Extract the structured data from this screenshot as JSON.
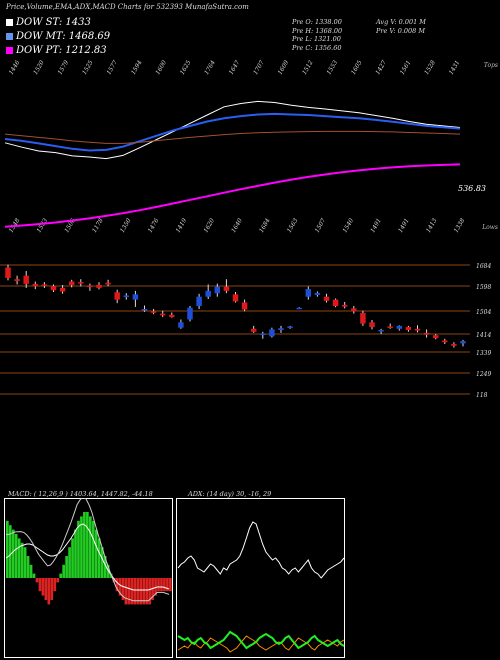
{
  "header": {
    "title": "Price,Volume,EMA,ADX,MACD Charts for 532393 MunafaSutra.com"
  },
  "legend": [
    {
      "label": "DOW ST: 1433",
      "color": "#ffffff"
    },
    {
      "label": "DOW MT: 1468.69",
      "color": "#6495ed"
    },
    {
      "label": "DOW PT: 1212.83",
      "color": "#ff00ff"
    }
  ],
  "info_block": {
    "col1": [
      "Pre O: 1338.00",
      "Pre H: 1368.00",
      "Pre L: 1321.00",
      "Pre C: 1356.60"
    ],
    "col2": [
      "Avg V: 0.001 M",
      "Pre V: 0.008 M"
    ]
  },
  "colors": {
    "up": "#1e4fd8",
    "down": "#e01818",
    "ema_white": "#ffffff",
    "ema_blue": "#2a5ef0",
    "ema_orange": "#a0522d",
    "ema_magenta": "#ff00ff",
    "axis_line": "#8b4513",
    "macd_bg": "#0a4a0a",
    "adx_green": "#22ee22",
    "adx_orange": "#ff8c00"
  },
  "chart_data": [
    {
      "type": "line",
      "name": "ema_panel",
      "top_labels": [
        "1446",
        "1520",
        "1579",
        "1525",
        "1577",
        "1594",
        "1600",
        "1625",
        "1764",
        "1647",
        "1707",
        "1609",
        "1512",
        "1553",
        "1605",
        "1427",
        "1561",
        "1528",
        "1431"
      ],
      "bottom_labels": [
        "1548",
        "1533",
        "1506",
        "1178",
        "1350",
        "1476",
        "1419",
        "1620",
        "1640",
        "1684",
        "1563",
        "1507",
        "1540",
        "1491",
        "1491",
        "1413",
        "1338"
      ],
      "right_top_label": "Tops",
      "right_bottom_label": "Lows",
      "last_value": "536.83",
      "series": [
        {
          "values": [
            1488,
            1472,
            1458,
            1452,
            1440,
            1436,
            1430,
            1442,
            1470,
            1500,
            1530,
            1560,
            1590,
            1620,
            1632,
            1640,
            1636,
            1626,
            1618,
            1612,
            1605,
            1598,
            1588,
            1578,
            1566,
            1556,
            1550,
            1544
          ]
        },
        {
          "values": [
            1502,
            1495,
            1486,
            1476,
            1466,
            1460,
            1462,
            1474,
            1494,
            1514,
            1534,
            1550,
            1566,
            1578,
            1586,
            1592,
            1594,
            1592,
            1590,
            1586,
            1582,
            1578,
            1572,
            1565,
            1558,
            1550,
            1545,
            1540
          ]
        },
        {
          "values": [
            1520,
            1514,
            1508,
            1502,
            1495,
            1490,
            1486,
            1486,
            1490,
            1496,
            1502,
            1508,
            1513,
            1518,
            1522,
            1525,
            1527,
            1528,
            1529,
            1530,
            1530,
            1530,
            1529,
            1528,
            1526,
            1524,
            1522,
            1520
          ]
        },
        {
          "values": [
            1180,
            1185,
            1190,
            1196,
            1203,
            1211,
            1220,
            1230,
            1241,
            1253,
            1266,
            1279,
            1292,
            1305,
            1318,
            1330,
            1342,
            1353,
            1363,
            1372,
            1380,
            1387,
            1393,
            1398,
            1402,
            1405,
            1407,
            1409
          ]
        }
      ]
    },
    {
      "type": "bar",
      "name": "candles",
      "yticks": [
        "1684",
        "1598",
        "1504",
        "1414",
        "1339",
        "1249",
        "118"
      ],
      "ohlc": [
        {
          "o": 1640,
          "h": 1650,
          "l": 1596,
          "c": 1604
        },
        {
          "o": 1600,
          "h": 1612,
          "l": 1582,
          "c": 1594
        },
        {
          "o": 1612,
          "h": 1628,
          "l": 1570,
          "c": 1584
        },
        {
          "o": 1584,
          "h": 1592,
          "l": 1566,
          "c": 1576
        },
        {
          "o": 1582,
          "h": 1590,
          "l": 1570,
          "c": 1578
        },
        {
          "o": 1576,
          "h": 1582,
          "l": 1556,
          "c": 1562
        },
        {
          "o": 1570,
          "h": 1580,
          "l": 1550,
          "c": 1558
        },
        {
          "o": 1592,
          "h": 1598,
          "l": 1572,
          "c": 1580
        },
        {
          "o": 1590,
          "h": 1600,
          "l": 1575,
          "c": 1585
        },
        {
          "o": 1578,
          "h": 1585,
          "l": 1560,
          "c": 1575
        },
        {
          "o": 1580,
          "h": 1590,
          "l": 1565,
          "c": 1570
        },
        {
          "o": 1588,
          "h": 1598,
          "l": 1576,
          "c": 1582
        },
        {
          "o": 1555,
          "h": 1564,
          "l": 1518,
          "c": 1530
        },
        {
          "o": 1540,
          "h": 1552,
          "l": 1530,
          "c": 1544
        },
        {
          "o": 1530,
          "h": 1560,
          "l": 1505,
          "c": 1548
        },
        {
          "o": 1495,
          "h": 1510,
          "l": 1488,
          "c": 1498
        },
        {
          "o": 1490,
          "h": 1498,
          "l": 1480,
          "c": 1485
        },
        {
          "o": 1482,
          "h": 1492,
          "l": 1470,
          "c": 1476
        },
        {
          "o": 1478,
          "h": 1486,
          "l": 1468,
          "c": 1470
        },
        {
          "o": 1434,
          "h": 1462,
          "l": 1430,
          "c": 1452
        },
        {
          "o": 1462,
          "h": 1508,
          "l": 1455,
          "c": 1502
        },
        {
          "o": 1508,
          "h": 1550,
          "l": 1498,
          "c": 1540
        },
        {
          "o": 1540,
          "h": 1582,
          "l": 1532,
          "c": 1560
        },
        {
          "o": 1552,
          "h": 1585,
          "l": 1540,
          "c": 1574
        },
        {
          "o": 1574,
          "h": 1600,
          "l": 1552,
          "c": 1560
        },
        {
          "o": 1548,
          "h": 1556,
          "l": 1520,
          "c": 1524
        },
        {
          "o": 1520,
          "h": 1530,
          "l": 1490,
          "c": 1496
        },
        {
          "o": 1430,
          "h": 1440,
          "l": 1416,
          "c": 1420
        },
        {
          "o": 1410,
          "h": 1420,
          "l": 1396,
          "c": 1414
        },
        {
          "o": 1404,
          "h": 1434,
          "l": 1400,
          "c": 1428
        },
        {
          "o": 1426,
          "h": 1440,
          "l": 1416,
          "c": 1432
        },
        {
          "o": 1436,
          "h": 1440,
          "l": 1430,
          "c": 1438
        },
        {
          "o": 1500,
          "h": 1504,
          "l": 1500,
          "c": 1502
        },
        {
          "o": 1540,
          "h": 1575,
          "l": 1530,
          "c": 1566
        },
        {
          "o": 1546,
          "h": 1558,
          "l": 1540,
          "c": 1553
        },
        {
          "o": 1540,
          "h": 1550,
          "l": 1520,
          "c": 1526
        },
        {
          "o": 1530,
          "h": 1534,
          "l": 1504,
          "c": 1508
        },
        {
          "o": 1512,
          "h": 1522,
          "l": 1500,
          "c": 1506
        },
        {
          "o": 1500,
          "h": 1508,
          "l": 1482,
          "c": 1490
        },
        {
          "o": 1484,
          "h": 1492,
          "l": 1440,
          "c": 1448
        },
        {
          "o": 1452,
          "h": 1460,
          "l": 1428,
          "c": 1436
        },
        {
          "o": 1424,
          "h": 1430,
          "l": 1412,
          "c": 1426
        },
        {
          "o": 1438,
          "h": 1448,
          "l": 1430,
          "c": 1434
        },
        {
          "o": 1430,
          "h": 1442,
          "l": 1424,
          "c": 1440
        },
        {
          "o": 1436,
          "h": 1440,
          "l": 1420,
          "c": 1426
        },
        {
          "o": 1430,
          "h": 1442,
          "l": 1418,
          "c": 1424
        },
        {
          "o": 1416,
          "h": 1428,
          "l": 1400,
          "c": 1410
        },
        {
          "o": 1408,
          "h": 1412,
          "l": 1394,
          "c": 1398
        },
        {
          "o": 1390,
          "h": 1396,
          "l": 1378,
          "c": 1384
        },
        {
          "o": 1378,
          "h": 1384,
          "l": 1366,
          "c": 1372
        },
        {
          "o": 1380,
          "h": 1392,
          "l": 1370,
          "c": 1388
        }
      ]
    },
    {
      "type": "bar",
      "name": "macd",
      "title": "MACD: ( 12,26,9 ) 1403.64, 1447.82, -44.18",
      "hist": [
        26,
        24,
        22,
        20,
        18,
        16,
        14,
        10,
        6,
        2,
        -2,
        -6,
        -8,
        -10,
        -12,
        -10,
        -6,
        -2,
        2,
        6,
        10,
        14,
        18,
        22,
        26,
        28,
        30,
        30,
        28,
        26,
        22,
        18,
        14,
        10,
        6,
        2,
        -2,
        -6,
        -8,
        -10,
        -12,
        -12,
        -12,
        -12,
        -12,
        -12,
        -12,
        -12,
        -12,
        -10,
        -8,
        -6,
        -6,
        -6,
        -6,
        -6
      ]
    },
    {
      "type": "line",
      "name": "adx",
      "title": "ADX: (14 day) 30, -16, 29"
    }
  ]
}
